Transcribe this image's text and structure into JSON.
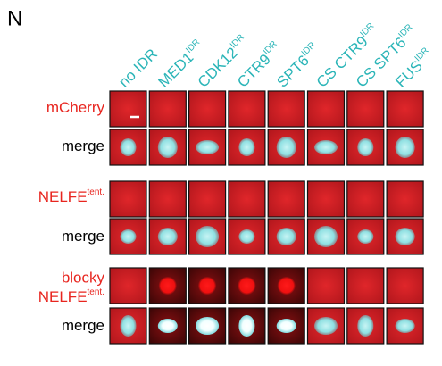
{
  "panel": "N",
  "columns": [
    {
      "name": "no IDR"
    },
    {
      "name": "MED1",
      "sup": "IDR"
    },
    {
      "name": "CDK12",
      "sup": "IDR"
    },
    {
      "name": "CTR9",
      "sup": "IDR"
    },
    {
      "name": "SPT6",
      "sup": "IDR"
    },
    {
      "name": "CS CTR9",
      "sup": "IDR"
    },
    {
      "name": "CS SPT6",
      "sup": "IDR"
    },
    {
      "name": "FUS",
      "sup": "IDR"
    }
  ],
  "rows": [
    {
      "label": "mCherry"
    },
    {
      "label": "merge"
    },
    {
      "label": "NELFE",
      "sup": "tent."
    },
    {
      "label": "merge"
    },
    {
      "prefix": "blocky",
      "label": "NELFE",
      "sup": "tent."
    },
    {
      "label": "merge"
    }
  ]
}
